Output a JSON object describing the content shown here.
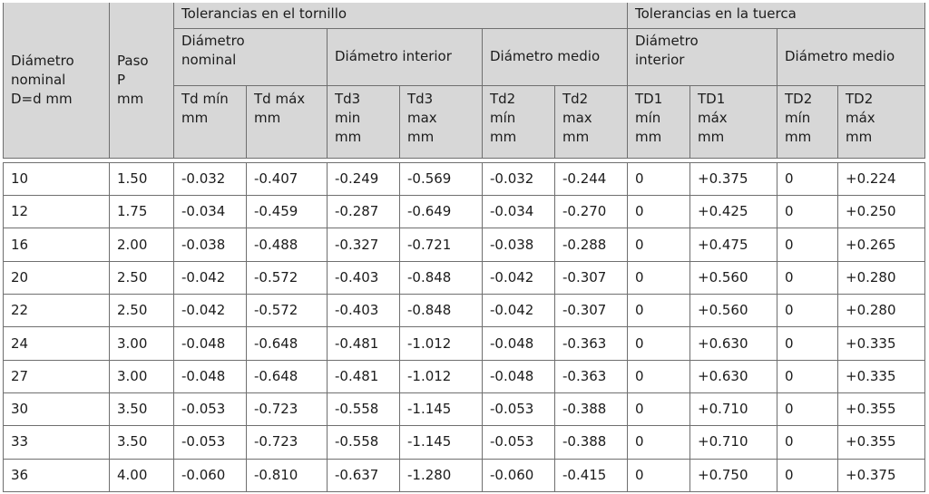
{
  "header": {
    "screw_group": "Tolerancias en el tornillo",
    "nut_group": "Tolerancias en la tuerca",
    "nominal_diameter": [
      "Diámetro",
      "nominal",
      "D=d mm"
    ],
    "pitch": [
      "Paso",
      "P",
      "mm"
    ],
    "screw_nominal_diameter": [
      "Diámetro",
      "nominal"
    ],
    "screw_inner_diameter": "Diámetro interior",
    "screw_mean_diameter": "Diámetro medio",
    "nut_inner_diameter": [
      "Diámetro",
      "interior"
    ],
    "nut_mean_diameter": "Diámetro medio",
    "cols": [
      [
        "Td mín",
        "mm"
      ],
      [
        "Td máx",
        "mm"
      ],
      [
        "Td3",
        "min",
        "mm"
      ],
      [
        "Td3",
        "max",
        "mm"
      ],
      [
        "Td2",
        "mín",
        "mm"
      ],
      [
        "Td2",
        "max",
        "mm"
      ],
      [
        "TD1",
        "mín",
        "mm"
      ],
      [
        "TD1",
        "máx",
        "mm"
      ],
      [
        "TD2",
        "mín",
        "mm"
      ],
      [
        "TD2",
        "máx",
        "mm"
      ]
    ]
  },
  "rows": [
    [
      "10",
      "1.50",
      "-0.032",
      "-0.407",
      "-0.249",
      "-0.569",
      "-0.032",
      "-0.244",
      "0",
      "+0.375",
      "0",
      "+0.224"
    ],
    [
      "12",
      "1.75",
      "-0.034",
      "-0.459",
      "-0.287",
      "-0.649",
      "-0.034",
      "-0.270",
      "0",
      "+0.425",
      "0",
      "+0.250"
    ],
    [
      "16",
      "2.00",
      "-0.038",
      "-0.488",
      "-0.327",
      "-0.721",
      "-0.038",
      "-0.288",
      "0",
      "+0.475",
      "0",
      "+0.265"
    ],
    [
      "20",
      "2.50",
      "-0.042",
      "-0.572",
      "-0.403",
      "-0.848",
      "-0.042",
      "-0.307",
      "0",
      "+0.560",
      "0",
      "+0.280"
    ],
    [
      "22",
      "2.50",
      "-0.042",
      "-0.572",
      "-0.403",
      "-0.848",
      "-0.042",
      "-0.307",
      "0",
      "+0.560",
      "0",
      "+0.280"
    ],
    [
      "24",
      "3.00",
      "-0.048",
      "-0.648",
      "-0.481",
      "-1.012",
      "-0.048",
      "-0.363",
      "0",
      "+0.630",
      "0",
      "+0.335"
    ],
    [
      "27",
      "3.00",
      "-0.048",
      "-0.648",
      "-0.481",
      "-1.012",
      "-0.048",
      "-0.363",
      "0",
      "+0.630",
      "0",
      "+0.335"
    ],
    [
      "30",
      "3.50",
      "-0.053",
      "-0.723",
      "-0.558",
      "-1.145",
      "-0.053",
      "-0.388",
      "0",
      "+0.710",
      "0",
      "+0.355"
    ],
    [
      "33",
      "3.50",
      "-0.053",
      "-0.723",
      "-0.558",
      "-1.145",
      "-0.053",
      "-0.388",
      "0",
      "+0.710",
      "0",
      "+0.355"
    ],
    [
      "36",
      "4.00",
      "-0.060",
      "-0.810",
      "-0.637",
      "-1.280",
      "-0.060",
      "-0.415",
      "0",
      "+0.750",
      "0",
      "+0.375"
    ]
  ]
}
